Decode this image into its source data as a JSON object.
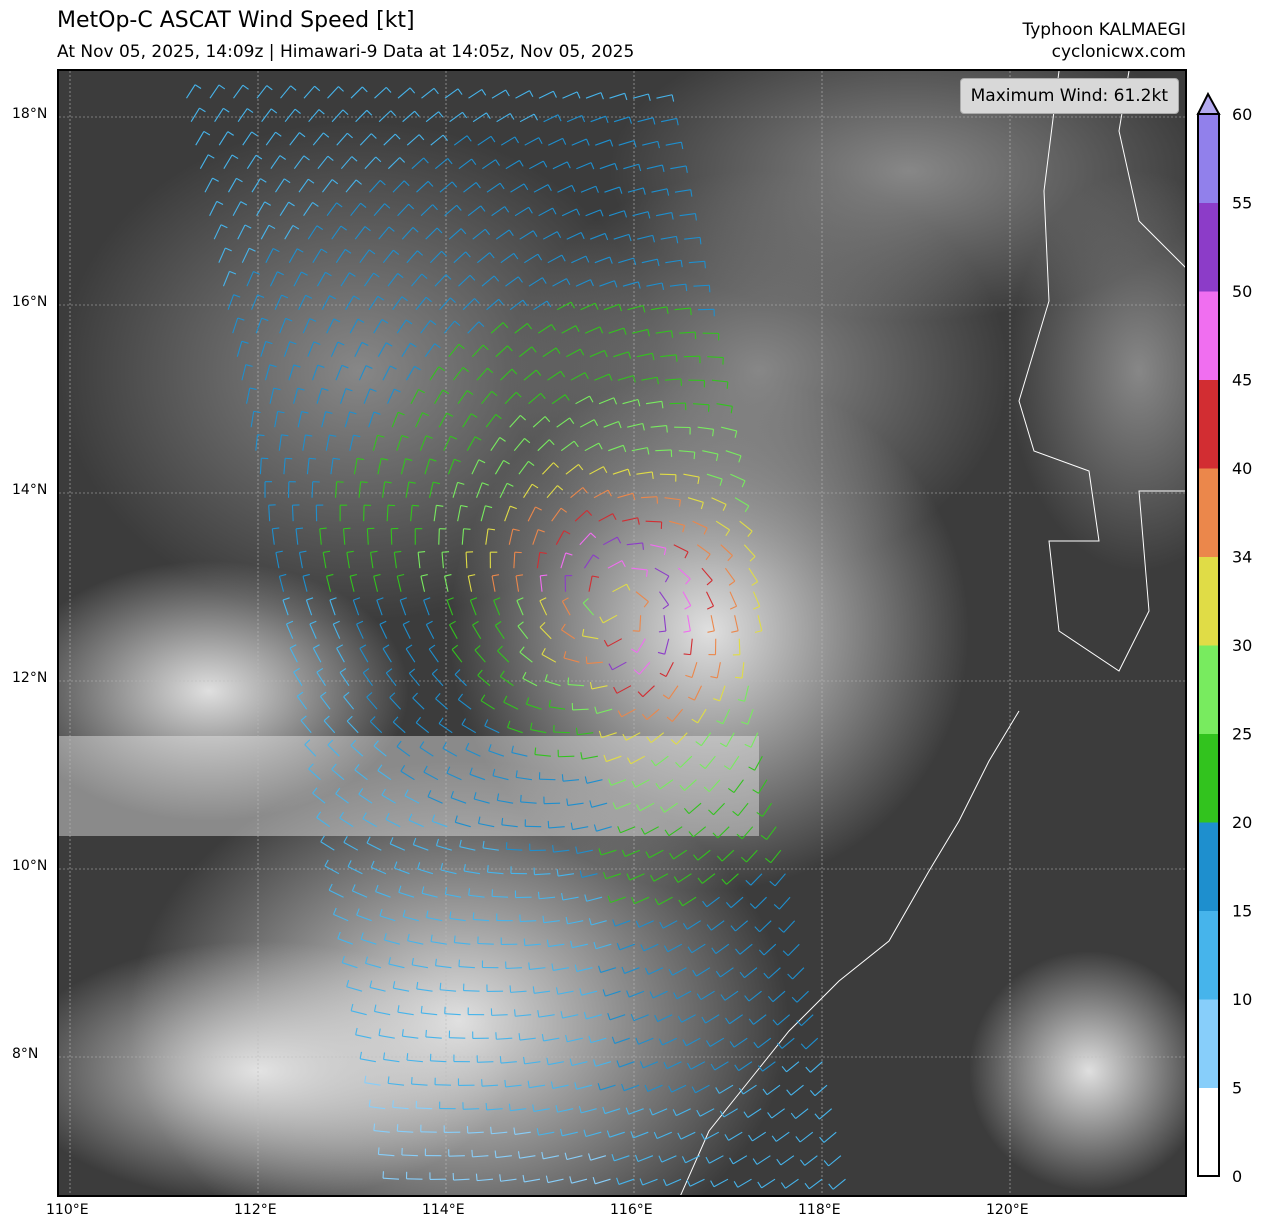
{
  "header": {
    "title": "MetOp-C ASCAT Wind Speed [kt]",
    "subtitle": "At Nov 05, 2025, 14:09z | Himawari-9 Data at 14:05z, Nov 05, 2025",
    "storm": "Typhoon KALMAEGI",
    "site": "cyclonicwx.com"
  },
  "max_wind": "Maximum Wind: 61.2kt",
  "axes": {
    "lon_ticks": [
      "110°E",
      "112°E",
      "114°E",
      "116°E",
      "118°E",
      "120°E"
    ],
    "lat_ticks": [
      "18°N",
      "16°N",
      "14°N",
      "12°N",
      "10°N",
      "8°N"
    ]
  },
  "colorbar": {
    "ticks": [
      "0",
      "5",
      "10",
      "15",
      "20",
      "25",
      "30",
      "34",
      "40",
      "45",
      "50",
      "55",
      "60"
    ],
    "colors": [
      "#ffffff",
      "#87cefa",
      "#46b4eb",
      "#1e8fce",
      "#32c31e",
      "#78eb5f",
      "#e0dc46",
      "#eb874b",
      "#d22d32",
      "#f06ef0",
      "#8c3cc8",
      "#9180eb"
    ],
    "extend_color": "#b4aaf0"
  }
}
